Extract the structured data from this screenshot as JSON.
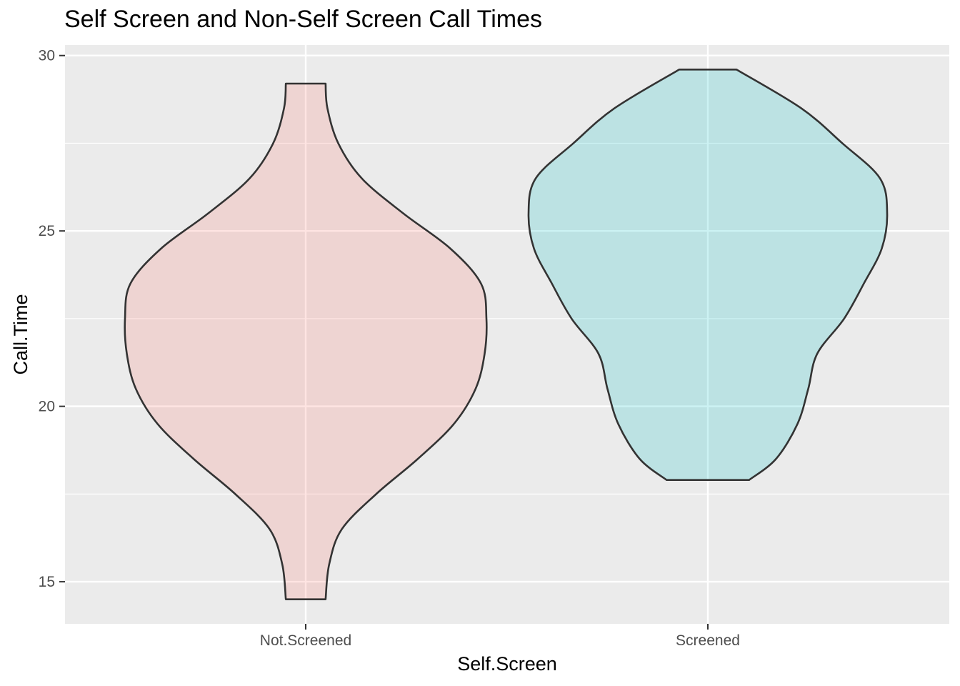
{
  "chart_data": {
    "type": "violin",
    "title": "Self Screen and Non-Self Screen Call Times",
    "xlabel": "Self.Screen",
    "ylabel": "Call.Time",
    "categories": [
      "Not.Screened",
      "Screened"
    ],
    "ylim": [
      13.8,
      30.3
    ],
    "yticks": [
      15,
      20,
      25,
      30
    ],
    "grid": true,
    "background": "#ebebeb",
    "series": [
      {
        "category": "Not.Screened",
        "fill": "#f8766d",
        "fill_opacity": 0.2,
        "min": 14.5,
        "max": 29.2,
        "density_profile": [
          [
            14.5,
            0.11
          ],
          [
            15.5,
            0.13
          ],
          [
            16.5,
            0.2
          ],
          [
            17.5,
            0.39
          ],
          [
            18.5,
            0.62
          ],
          [
            19.5,
            0.82
          ],
          [
            20.5,
            0.94
          ],
          [
            21.5,
            0.99
          ],
          [
            22.5,
            1.0
          ],
          [
            23.5,
            0.97
          ],
          [
            24.5,
            0.8
          ],
          [
            25.5,
            0.54
          ],
          [
            26.5,
            0.31
          ],
          [
            27.5,
            0.18
          ],
          [
            28.5,
            0.12
          ],
          [
            29.2,
            0.11
          ]
        ]
      },
      {
        "category": "Screened",
        "fill": "#00bfc4",
        "fill_opacity": 0.2,
        "min": 17.9,
        "max": 29.6,
        "density_profile": [
          [
            17.9,
            0.23
          ],
          [
            18.5,
            0.38
          ],
          [
            19.5,
            0.5
          ],
          [
            20.5,
            0.56
          ],
          [
            21.5,
            0.61
          ],
          [
            22.5,
            0.76
          ],
          [
            23.5,
            0.87
          ],
          [
            24.5,
            0.97
          ],
          [
            25.5,
            1.0
          ],
          [
            26.5,
            0.96
          ],
          [
            27.5,
            0.75
          ],
          [
            28.5,
            0.52
          ],
          [
            29.6,
            0.16
          ]
        ]
      }
    ]
  }
}
